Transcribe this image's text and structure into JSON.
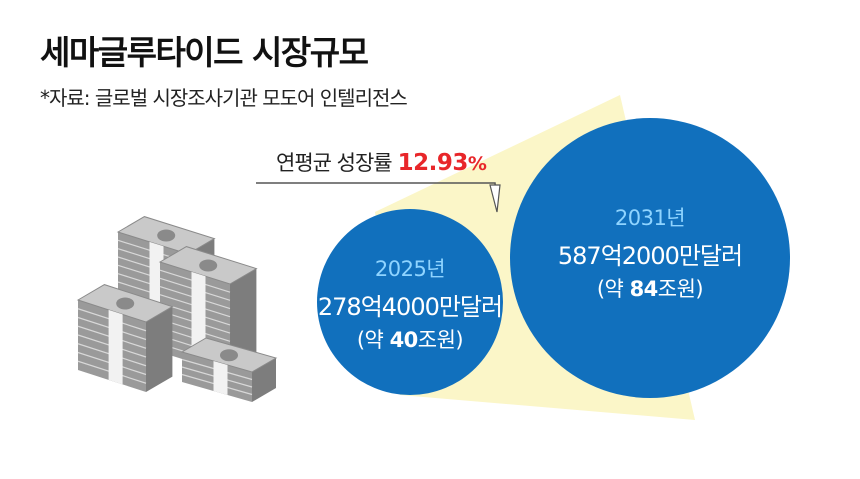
{
  "header": {
    "title": "세마글루타이드 시장규모",
    "source": "*자료: 글로벌 시장조사기관 모도어 인텔리전스"
  },
  "growth": {
    "label": "연평균 성장률",
    "value": "12.93",
    "unit": "%"
  },
  "colors": {
    "circle": "#1170bd",
    "year_text": "#8fd4ff",
    "highlight": "#e8262a",
    "cone": "#fbf6c8"
  },
  "icon": "money-stacks-icon",
  "chart_data": {
    "type": "bubble",
    "unit": "달러",
    "points": [
      {
        "year": "2025년",
        "amount_label": "278억4000만달러",
        "krw_prefix": "(약 ",
        "krw_value": "40",
        "krw_suffix": "조원)",
        "value": 27.84
      },
      {
        "year": "2031년",
        "amount_label": "587억2000만달러",
        "krw_prefix": "(약 ",
        "krw_value": "84",
        "krw_suffix": "조원)",
        "value": 58.72
      }
    ]
  }
}
